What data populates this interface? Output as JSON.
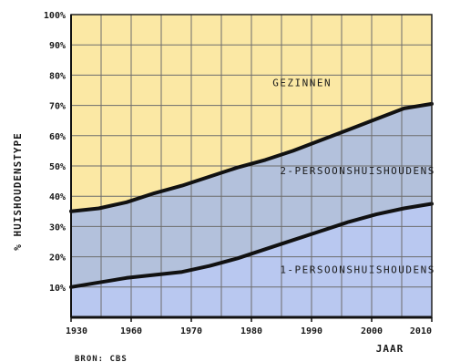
{
  "chart_data": {
    "type": "area",
    "title": "",
    "ylabel": "% HUISHOUDENSTYPE",
    "xlabel": "JAAR",
    "source": "BRON: CBS",
    "x_ticks": [
      "1930",
      "1960",
      "1970",
      "1980",
      "1990",
      "2000",
      "2010"
    ],
    "y_ticks": [
      "10%",
      "20%",
      "30%",
      "40%",
      "50%",
      "60%",
      "70%",
      "80%",
      "90%",
      "100%"
    ],
    "ylim": [
      0,
      100
    ],
    "stacked": true,
    "series": [
      {
        "name": "1-PERSOONSHUISHOUDENS",
        "color": "#b9c8f0",
        "values": [
          10,
          11.5,
          13,
          14,
          15,
          17,
          19.5,
          22.5,
          25.5,
          28.5,
          31.5,
          34,
          36,
          37.5
        ]
      },
      {
        "name": "2-PERSOONSHUISHOUDENS",
        "color": "#b3c1dc",
        "values": [
          25,
          24.5,
          25,
          27,
          28.5,
          29.5,
          30,
          29.5,
          29.5,
          30,
          30.5,
          31.5,
          33,
          33
        ]
      },
      {
        "name": "GEZINNEN",
        "color": "#fbe8a4",
        "values": [
          65,
          64,
          62,
          59,
          56.5,
          53.5,
          50.5,
          48,
          45,
          41.5,
          38,
          34.5,
          31,
          29.5
        ]
      }
    ],
    "grid": true
  }
}
